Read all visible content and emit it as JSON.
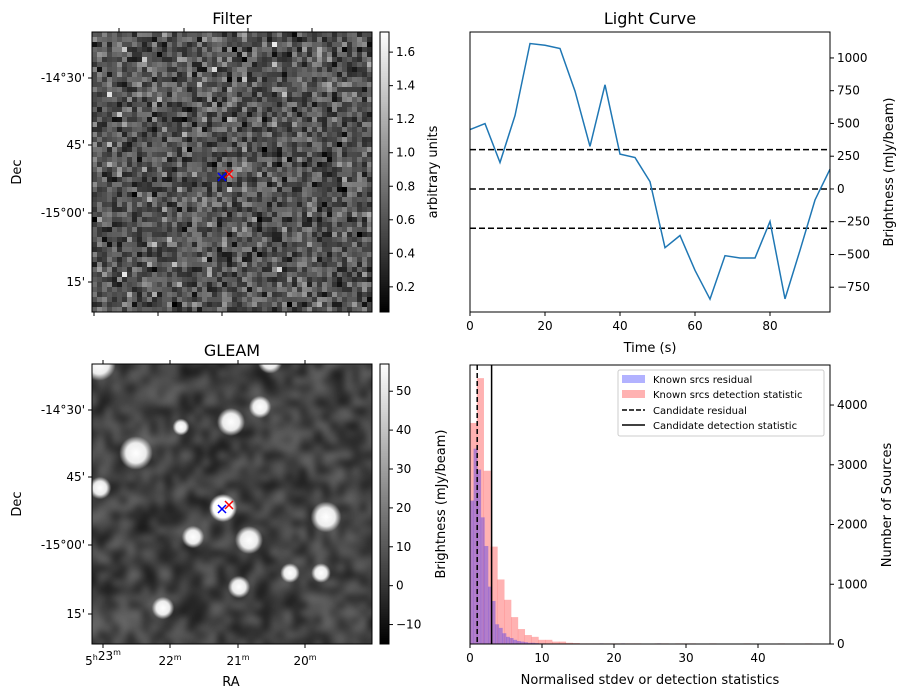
{
  "colors": {
    "line": "#1f77b4",
    "residual": "#0000ff",
    "detection": "#ff0000",
    "candidate_blue": "#0000ff",
    "candidate_red": "#ff0000"
  },
  "chart_data": [
    {
      "type": "heatmap",
      "title": "Filter",
      "ylabel": "Dec",
      "dec_ticks": [
        "-14°30'",
        "45'",
        "-15°00'",
        "15'"
      ],
      "colorbar": {
        "label": "arbitrary units",
        "range": [
          0.05,
          1.72
        ],
        "ticks": [
          "0.2",
          "0.4",
          "0.6",
          "0.8",
          "1.0",
          "1.2",
          "1.4",
          "1.6"
        ],
        "tick_values": [
          0.2,
          0.4,
          0.6,
          0.8,
          1.0,
          1.2,
          1.4,
          1.6
        ]
      },
      "markers": [
        "blue-x",
        "red-x"
      ]
    },
    {
      "type": "line",
      "title": "Light Curve",
      "xlabel": "Time (s)",
      "ylabel": "Brightness (mJy/beam)",
      "xlim": [
        0,
        96
      ],
      "ylim": [
        -939,
        1198
      ],
      "xticks": [
        0,
        20,
        40,
        60,
        80
      ],
      "yticks": [
        -750,
        -500,
        -250,
        0,
        250,
        500,
        750,
        1000
      ],
      "ytick_labels": [
        "−750",
        "−500",
        "−250",
        "0",
        "250",
        "500",
        "750",
        "1000"
      ],
      "x": [
        0,
        4,
        8,
        12,
        16,
        20,
        24,
        28,
        32,
        36,
        40,
        44,
        48,
        52,
        56,
        60,
        64,
        68,
        72,
        76,
        80,
        84,
        88,
        92,
        96
      ],
      "y": [
        453,
        499,
        202,
        560,
        1110,
        1097,
        1072,
        747,
        325,
        795,
        266,
        240,
        56,
        -448,
        -355,
        -621,
        -841,
        -509,
        -527,
        -527,
        -248,
        -839,
        -468,
        -84,
        151
      ],
      "hlines": [
        300,
        0,
        -300
      ]
    },
    {
      "type": "heatmap",
      "title": "GLEAM",
      "xlabel": "RA",
      "ylabel": "Dec",
      "ra_ticks": [
        {
          "h": "5",
          "m": "23"
        },
        {
          "h": "",
          "m": "22"
        },
        {
          "h": "",
          "m": "21"
        },
        {
          "h": "",
          "m": "20"
        }
      ],
      "dec_ticks": [
        "-14°30'",
        "45'",
        "-15°00'",
        "15'"
      ],
      "colorbar": {
        "label": "Brightness (mJy/beam)",
        "range": [
          -15,
          57
        ],
        "ticks": [
          "−10",
          "0",
          "10",
          "20",
          "30",
          "40",
          "50"
        ],
        "tick_values": [
          -10,
          0,
          10,
          20,
          30,
          40,
          50
        ]
      },
      "markers": [
        "blue-x",
        "red-x"
      ]
    },
    {
      "type": "bar",
      "xlabel": "Normalised stdev or detection statistics",
      "ylabel": "Number of Sources",
      "xlim": [
        0,
        50
      ],
      "ylim": [
        0,
        4670
      ],
      "xticks": [
        0,
        10,
        20,
        30,
        40
      ],
      "yticks": [
        0,
        1000,
        2000,
        3000,
        4000
      ],
      "legend_position": "top-right",
      "series": [
        {
          "name": "Known srcs residual",
          "bin_width": 0.5,
          "start": 0,
          "values": [
            2400,
            3270,
            2920,
            2120,
            1640,
            960,
            720,
            330,
            270,
            180,
            120,
            100,
            70,
            50,
            40,
            30,
            20,
            20,
            15,
            10,
            10,
            8,
            6,
            5,
            5,
            4,
            3,
            3,
            2,
            2,
            2,
            1,
            1,
            1,
            1,
            1,
            10,
            0,
            0,
            0,
            0,
            0,
            10,
            0,
            0,
            0,
            0,
            0,
            0,
            0,
            0,
            0,
            10
          ]
        },
        {
          "name": "Known srcs detection statistic",
          "bin_width": 0.95,
          "start": 0,
          "values": [
            3700,
            4450,
            2900,
            1630,
            1080,
            740,
            450,
            250,
            150,
            120,
            70,
            70,
            40,
            40,
            20,
            15,
            10,
            10,
            10,
            10,
            10,
            10,
            10,
            10,
            10,
            0,
            0,
            10,
            10,
            0,
            10,
            10,
            10,
            0,
            0,
            10,
            0,
            0,
            0,
            0,
            10,
            0,
            0,
            0,
            0,
            10,
            0,
            0,
            0,
            10
          ]
        }
      ],
      "vlines": [
        {
          "name": "Candidate residual",
          "x": 1.0,
          "style": "dashed"
        },
        {
          "name": "Candidate detection statistic",
          "x": 3.0,
          "style": "solid"
        }
      ]
    }
  ]
}
